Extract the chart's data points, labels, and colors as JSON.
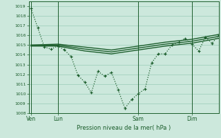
{
  "background_color": "#cce8dc",
  "grid_color": "#99ccb8",
  "line_color": "#1a5c2a",
  "title": "Pression niveau de la mer( hPa )",
  "ylim": [
    1008,
    1019.5
  ],
  "ytick_vals": [
    1008,
    1009,
    1010,
    1011,
    1012,
    1013,
    1014,
    1015,
    1016,
    1017,
    1018,
    1019
  ],
  "xtick_labels": [
    "Ven",
    "Lun",
    "Sam",
    "Dim"
  ],
  "xtick_positions": [
    2,
    26,
    98,
    146
  ],
  "vline_positions": [
    2,
    26,
    98,
    146
  ],
  "xlim": [
    0,
    170
  ],
  "dotted_line": {
    "x": [
      2,
      8,
      14,
      20,
      26,
      32,
      38,
      44,
      50,
      56,
      62,
      68,
      74,
      80,
      86,
      92,
      98,
      104,
      110,
      116,
      122,
      128,
      134,
      140,
      146,
      152,
      158,
      164,
      170
    ],
    "y": [
      1018.8,
      1016.8,
      1014.8,
      1014.6,
      1014.9,
      1014.5,
      1013.8,
      1011.9,
      1011.2,
      1010.1,
      1012.3,
      1011.8,
      1012.2,
      1010.4,
      1008.5,
      1009.4,
      1010.0,
      1010.5,
      1013.2,
      1014.1,
      1014.1,
      1015.0,
      1015.3,
      1015.7,
      1015.1,
      1014.4,
      1015.8,
      1015.2,
      1016.0
    ]
  },
  "solid_line1": {
    "x": [
      2,
      26,
      50,
      74,
      98,
      122,
      146,
      170
    ],
    "y": [
      1015.0,
      1015.1,
      1014.8,
      1014.5,
      1014.9,
      1015.3,
      1015.6,
      1016.1
    ]
  },
  "solid_line2": {
    "x": [
      2,
      26,
      50,
      74,
      98,
      122,
      146,
      170
    ],
    "y": [
      1015.0,
      1015.0,
      1014.6,
      1014.3,
      1014.7,
      1015.1,
      1015.4,
      1015.9
    ]
  },
  "solid_line3": {
    "x": [
      2,
      26,
      50,
      74,
      98,
      122,
      146,
      170
    ],
    "y": [
      1014.9,
      1014.9,
      1014.4,
      1014.1,
      1014.5,
      1014.9,
      1015.2,
      1015.7
    ]
  }
}
